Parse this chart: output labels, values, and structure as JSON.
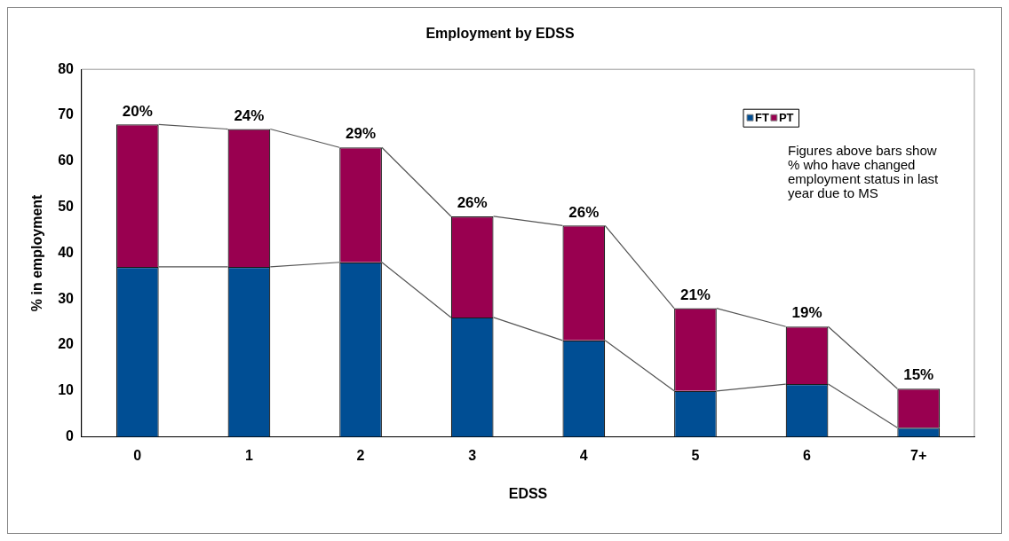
{
  "chart_data": {
    "type": "bar",
    "title": "Employment by EDSS",
    "xlabel": "EDSS",
    "ylabel": "% in employment",
    "categories": [
      "0",
      "1",
      "2",
      "3",
      "4",
      "5",
      "6",
      "7+"
    ],
    "stacked": true,
    "series": [
      {
        "name": "FT",
        "color": "#004e94",
        "values": [
          37,
          37,
          38,
          26,
          21,
          10,
          11.5,
          2
        ]
      },
      {
        "name": "PT",
        "color": "#990050",
        "values": [
          31,
          30,
          25,
          22,
          25,
          18,
          12.5,
          8.5
        ]
      }
    ],
    "ylim": [
      0,
      80
    ],
    "yticks": [
      0,
      10,
      20,
      30,
      40,
      50,
      60,
      70,
      80
    ],
    "grid": false,
    "legend": "top right",
    "annotations": [
      {
        "text": "20%",
        "x": "0",
        "y": 68
      },
      {
        "text": "24%",
        "x": "1",
        "y": 67
      },
      {
        "text": "29%",
        "x": "2",
        "y": 63
      },
      {
        "text": "26%",
        "x": "3",
        "y": 48
      },
      {
        "text": "26%",
        "x": "4",
        "y": 46
      },
      {
        "text": "21%",
        "x": "5",
        "y": 28
      },
      {
        "text": "19%",
        "x": "6",
        "y": 24
      },
      {
        "text": "15%",
        "x": "7+",
        "y": 10.5
      },
      "Figures above bars show % who have changed employment status in last year due to MS"
    ]
  }
}
